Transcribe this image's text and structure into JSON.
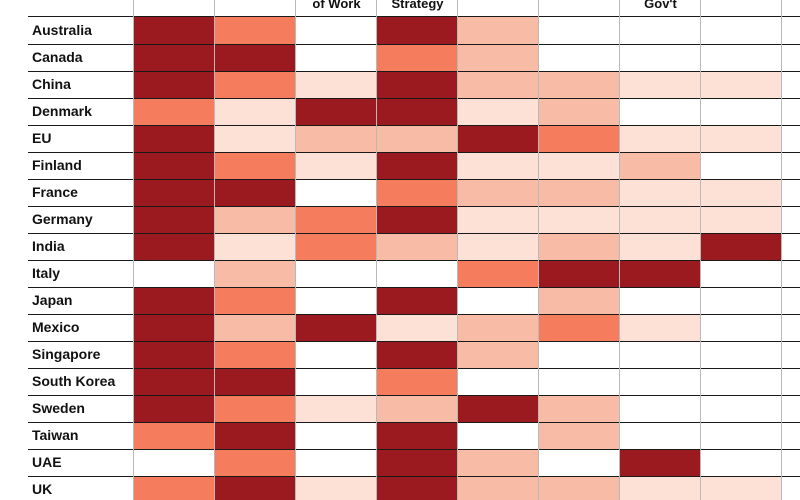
{
  "chart_data": {
    "type": "heatmap",
    "columns": [
      "",
      "",
      "of Work",
      "Strategy",
      "",
      "",
      "Gov't",
      ""
    ],
    "rows": [
      "Australia",
      "Canada",
      "China",
      "Denmark",
      "EU",
      "Finland",
      "France",
      "Germany",
      "India",
      "Italy",
      "Japan",
      "Mexico",
      "Singapore",
      "South Korea",
      "Sweden",
      "Taiwan",
      "UAE",
      "UK"
    ],
    "levels": [
      [
        4,
        3,
        0,
        4,
        2,
        0,
        0,
        0
      ],
      [
        4,
        4,
        0,
        3,
        2,
        0,
        0,
        0
      ],
      [
        4,
        3,
        1,
        4,
        2,
        2,
        1,
        1
      ],
      [
        3,
        1,
        4,
        4,
        1,
        2,
        0,
        0
      ],
      [
        4,
        1,
        2,
        2,
        4,
        3,
        1,
        1
      ],
      [
        4,
        3,
        1,
        4,
        1,
        1,
        2,
        0
      ],
      [
        4,
        4,
        0,
        3,
        2,
        2,
        1,
        1
      ],
      [
        4,
        2,
        3,
        4,
        1,
        1,
        1,
        1
      ],
      [
        4,
        1,
        3,
        2,
        1,
        2,
        1,
        4
      ],
      [
        0,
        2,
        0,
        0,
        3,
        4,
        4,
        0
      ],
      [
        4,
        3,
        0,
        4,
        0,
        2,
        0,
        0
      ],
      [
        4,
        2,
        4,
        1,
        2,
        3,
        1,
        0
      ],
      [
        4,
        3,
        0,
        4,
        2,
        0,
        0,
        0
      ],
      [
        4,
        4,
        0,
        3,
        0,
        0,
        0,
        0
      ],
      [
        4,
        3,
        1,
        2,
        4,
        2,
        0,
        0
      ],
      [
        3,
        4,
        0,
        4,
        0,
        2,
        0,
        0
      ],
      [
        0,
        3,
        0,
        4,
        2,
        0,
        4,
        0
      ],
      [
        3,
        4,
        1,
        4,
        2,
        2,
        1,
        1
      ]
    ],
    "level_colors": [
      "#ffffff",
      "#fde0d6",
      "#f8bba5",
      "#f57d5e",
      "#ef3b2c",
      "#cf1f28",
      "#9b1a1f"
    ]
  }
}
